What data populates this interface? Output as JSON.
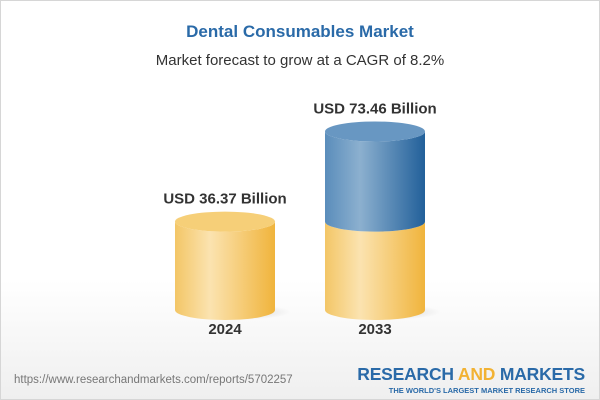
{
  "title": "Dental Consumables Market",
  "subtitle": "Market forecast to grow at a CAGR of 8.2%",
  "chart_data": {
    "type": "bar",
    "style": "3d-cylinder",
    "categories": [
      "2024",
      "2033"
    ],
    "values": [
      36.37,
      73.46
    ],
    "data_labels": [
      "USD 36.37 Billion",
      "USD 73.46 Billion"
    ],
    "unit": "USD Billion",
    "colors": {
      "base": "#f4c35a",
      "growth": "#3d78ad"
    },
    "grid": false
  },
  "footer": {
    "url": "https://www.researchandmarkets.com/reports/5702257",
    "logo_part1": "RESEARCH ",
    "logo_part2": "AND",
    "logo_part3": " MARKETS",
    "tagline": "THE WORLD'S LARGEST MARKET RESEARCH STORE"
  }
}
